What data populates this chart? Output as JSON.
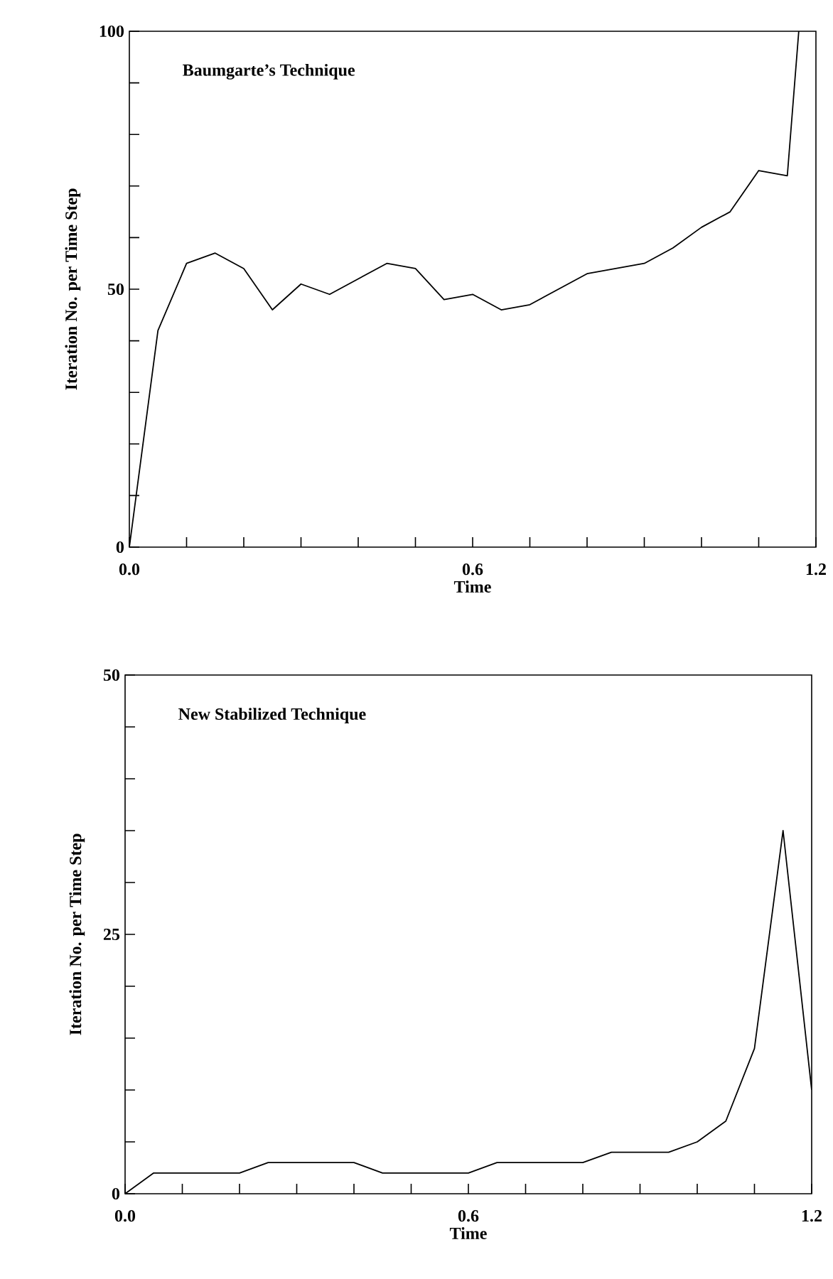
{
  "chart_data": [
    {
      "type": "line",
      "title": "Baumgarte’s Technique",
      "xlabel": "Time",
      "ylabel": "Iteration No. per Time Step",
      "color": "#000000",
      "grid": false,
      "x": [
        0,
        0.05,
        0.1,
        0.15,
        0.2,
        0.25,
        0.3,
        0.35,
        0.4,
        0.45,
        0.5,
        0.55,
        0.6,
        0.65,
        0.7,
        0.75,
        0.8,
        0.85,
        0.9,
        0.95,
        1.0,
        1.05,
        1.1,
        1.15,
        1.17
      ],
      "values": [
        0,
        42,
        55,
        57,
        54,
        46,
        51,
        49,
        52,
        55,
        54,
        48,
        49,
        46,
        47,
        50,
        53,
        54,
        55,
        58,
        62,
        65,
        73,
        72,
        100
      ],
      "xlim": [
        0,
        1.2
      ],
      "ylim": [
        0,
        100
      ],
      "xticks": [
        {
          "value": 0,
          "label": "0.0"
        },
        {
          "value": 0.1,
          "label": null
        },
        {
          "value": 0.2,
          "label": null
        },
        {
          "value": 0.3,
          "label": null
        },
        {
          "value": 0.4,
          "label": null
        },
        {
          "value": 0.5,
          "label": null
        },
        {
          "value": 0.6,
          "label": "0.6"
        },
        {
          "value": 0.7,
          "label": null
        },
        {
          "value": 0.8,
          "label": null
        },
        {
          "value": 0.9,
          "label": null
        },
        {
          "value": 1.0,
          "label": null
        },
        {
          "value": 1.1,
          "label": null
        },
        {
          "value": 1.2,
          "label": "1.2"
        }
      ],
      "yticks": [
        0,
        {
          "value": 10,
          "label": null
        },
        {
          "value": 20,
          "label": null
        },
        {
          "value": 30,
          "label": null
        },
        {
          "value": 40,
          "label": null
        },
        50,
        {
          "value": 60,
          "label": null
        },
        {
          "value": 70,
          "label": null
        },
        {
          "value": 80,
          "label": null
        },
        {
          "value": 90,
          "label": null
        },
        100
      ]
    },
    {
      "type": "line",
      "title": "New Stabilized Technique",
      "xlabel": "Time",
      "ylabel": "Iteration No. per Time Step",
      "color": "#000000",
      "grid": false,
      "x": [
        0,
        0.05,
        0.1,
        0.15,
        0.2,
        0.25,
        0.3,
        0.35,
        0.4,
        0.45,
        0.5,
        0.55,
        0.6,
        0.65,
        0.7,
        0.75,
        0.8,
        0.85,
        0.9,
        0.95,
        1.0,
        1.05,
        1.1,
        1.15,
        1.2
      ],
      "values": [
        0,
        2,
        2,
        2,
        2,
        3,
        3,
        3,
        3,
        2,
        2,
        2,
        2,
        3,
        3,
        3,
        3,
        4,
        4,
        4,
        5,
        7,
        14,
        35,
        10
      ],
      "xlim": [
        0,
        1.2
      ],
      "ylim": [
        0,
        50
      ],
      "xticks": [
        {
          "value": 0,
          "label": "0.0"
        },
        {
          "value": 0.1,
          "label": null
        },
        {
          "value": 0.2,
          "label": null
        },
        {
          "value": 0.3,
          "label": null
        },
        {
          "value": 0.4,
          "label": null
        },
        {
          "value": 0.5,
          "label": null
        },
        {
          "value": 0.6,
          "label": "0.6"
        },
        {
          "value": 0.7,
          "label": null
        },
        {
          "value": 0.8,
          "label": null
        },
        {
          "value": 0.9,
          "label": null
        },
        {
          "value": 1.0,
          "label": null
        },
        {
          "value": 1.1,
          "label": null
        },
        {
          "value": 1.2,
          "label": "1.2"
        }
      ],
      "yticks": [
        0,
        {
          "value": 5,
          "label": null
        },
        {
          "value": 10,
          "label": null
        },
        {
          "value": 15,
          "label": null
        },
        {
          "value": 20,
          "label": null
        },
        25,
        {
          "value": 30,
          "label": null
        },
        {
          "value": 35,
          "label": null
        },
        {
          "value": 40,
          "label": null
        },
        {
          "value": 45,
          "label": null
        },
        50
      ]
    }
  ]
}
